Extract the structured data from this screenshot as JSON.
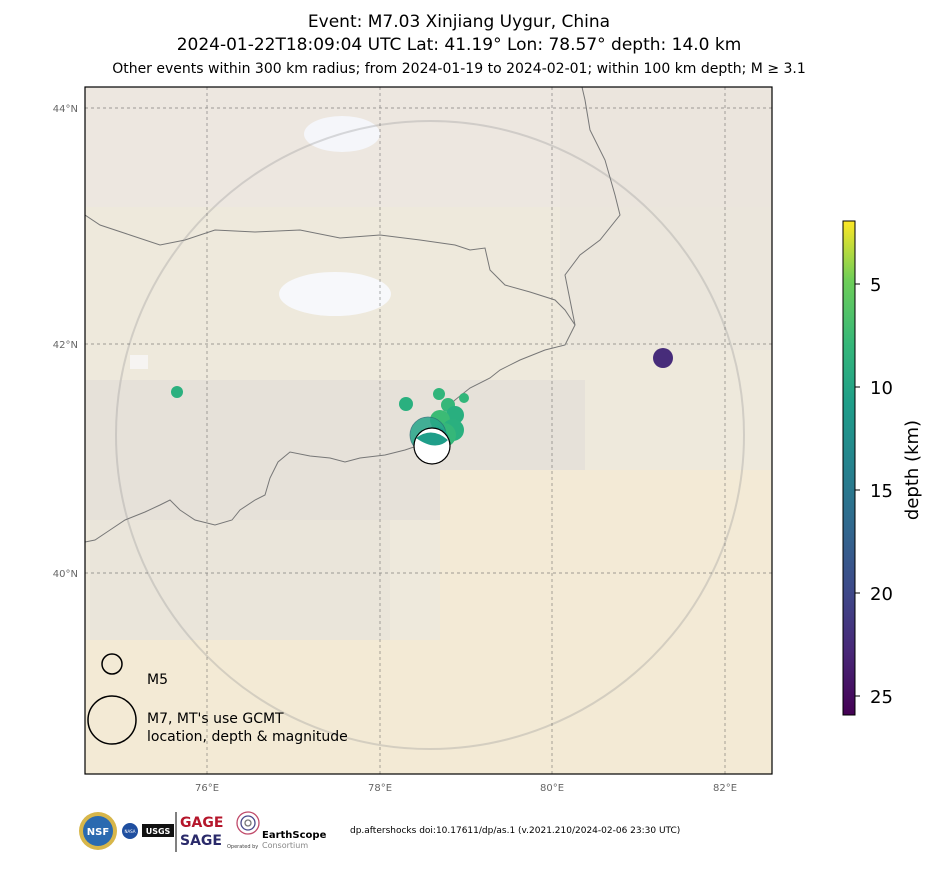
{
  "title": {
    "line1": "Event: M7.03 Xinjiang Uygur, China",
    "line2": "2024-01-22T18:09:04 UTC Lat: 41.19° Lon: 78.57° depth: 14.0 km",
    "line3": "Other events within 300 km radius; from 2024-01-19 to 2024-02-01; within 100 km depth; M ≥ 3.1"
  },
  "map": {
    "lat_ticks": [
      "44°N",
      "42°N",
      "40°N"
    ],
    "lon_ticks": [
      "76°E",
      "78°E",
      "80°E",
      "82°E"
    ],
    "legend": {
      "m5": "M5",
      "m7_line1": "M7, MT's use GCMT",
      "m7_line2": "location, depth & magnitude"
    }
  },
  "colorbar": {
    "label": "depth (km)",
    "ticks": [
      "5",
      "10",
      "15",
      "20",
      "25"
    ]
  },
  "footer": {
    "doi": "dp.aftershocks doi:10.17611/dp/as.1 (v.2021.210/2024-02-06 23:30 UTC)",
    "logos": [
      "NSF",
      "NASA",
      "USGS",
      "GAGE",
      "SAGE",
      "EarthScope",
      "Consortium",
      "Operated by"
    ]
  },
  "colors": {
    "frame": "#000000",
    "land": "#efe6cf"
  }
}
